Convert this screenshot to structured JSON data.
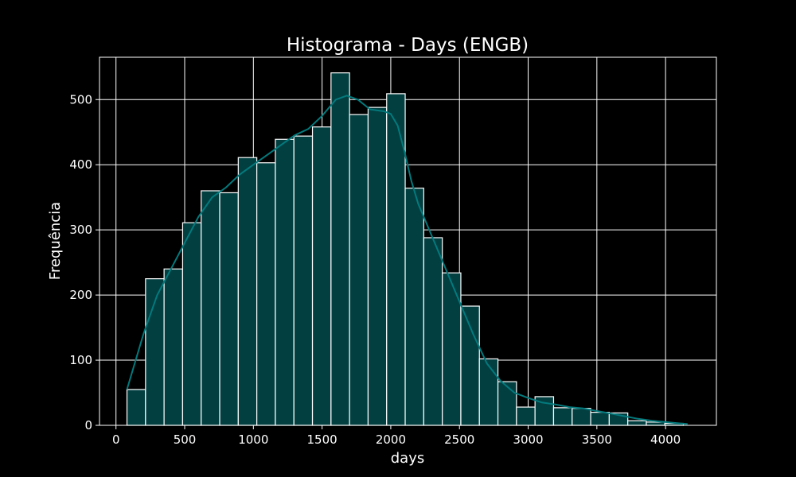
{
  "chart_data": {
    "type": "bar",
    "title": "Histograma - Days (ENGB)",
    "xlabel": "days",
    "ylabel": "Frequência",
    "xlim": [
      -120,
      4370
    ],
    "ylim": [
      0,
      565
    ],
    "xticks": [
      0,
      500,
      1000,
      1500,
      2000,
      2500,
      3000,
      3500,
      4000
    ],
    "yticks": [
      0,
      100,
      200,
      300,
      400,
      500
    ],
    "grid": true,
    "bins": [
      {
        "start": 80,
        "end": 215,
        "count": 55
      },
      {
        "start": 215,
        "end": 350,
        "count": 225
      },
      {
        "start": 350,
        "end": 485,
        "count": 240
      },
      {
        "start": 485,
        "end": 620,
        "count": 311
      },
      {
        "start": 620,
        "end": 755,
        "count": 360
      },
      {
        "start": 755,
        "end": 890,
        "count": 357
      },
      {
        "start": 890,
        "end": 1025,
        "count": 411
      },
      {
        "start": 1025,
        "end": 1160,
        "count": 403
      },
      {
        "start": 1160,
        "end": 1295,
        "count": 439
      },
      {
        "start": 1295,
        "end": 1430,
        "count": 444
      },
      {
        "start": 1430,
        "end": 1565,
        "count": 458
      },
      {
        "start": 1565,
        "end": 1700,
        "count": 541
      },
      {
        "start": 1700,
        "end": 1835,
        "count": 477
      },
      {
        "start": 1835,
        "end": 1970,
        "count": 488
      },
      {
        "start": 1970,
        "end": 2105,
        "count": 509
      },
      {
        "start": 2105,
        "end": 2240,
        "count": 364
      },
      {
        "start": 2240,
        "end": 2375,
        "count": 288
      },
      {
        "start": 2375,
        "end": 2510,
        "count": 234
      },
      {
        "start": 2510,
        "end": 2645,
        "count": 183
      },
      {
        "start": 2645,
        "end": 2780,
        "count": 102
      },
      {
        "start": 2780,
        "end": 2915,
        "count": 67
      },
      {
        "start": 2915,
        "end": 3050,
        "count": 28
      },
      {
        "start": 3050,
        "end": 3185,
        "count": 44
      },
      {
        "start": 3185,
        "end": 3320,
        "count": 27
      },
      {
        "start": 3320,
        "end": 3455,
        "count": 26
      },
      {
        "start": 3455,
        "end": 3590,
        "count": 20
      },
      {
        "start": 3590,
        "end": 3725,
        "count": 19
      },
      {
        "start": 3725,
        "end": 3860,
        "count": 7
      },
      {
        "start": 3860,
        "end": 3995,
        "count": 5
      },
      {
        "start": 3995,
        "end": 4130,
        "count": 3
      }
    ],
    "kde": {
      "x": [
        80,
        200,
        300,
        400,
        500,
        600,
        700,
        800,
        900,
        1000,
        1100,
        1200,
        1300,
        1400,
        1500,
        1600,
        1680,
        1760,
        1850,
        1950,
        2000,
        2050,
        2100,
        2150,
        2200,
        2250,
        2300,
        2400,
        2500,
        2600,
        2700,
        2800,
        2900,
        3000,
        3100,
        3200,
        3300,
        3400,
        3500,
        3600,
        3700,
        3800,
        3900,
        4000,
        4100,
        4160
      ],
      "y": [
        55,
        140,
        200,
        240,
        280,
        320,
        350,
        365,
        385,
        400,
        415,
        430,
        445,
        455,
        475,
        500,
        506,
        500,
        485,
        482,
        478,
        460,
        420,
        375,
        340,
        315,
        290,
        240,
        190,
        140,
        95,
        68,
        50,
        42,
        35,
        32,
        28,
        26,
        22,
        18,
        14,
        10,
        7,
        5,
        3,
        2
      ]
    },
    "colors": {
      "background": "#000000",
      "bar_fill": "#023f41",
      "bar_edge": "#ffffff",
      "kde_line": "#027a7d",
      "grid": "#ffffff",
      "text": "#ffffff"
    }
  }
}
